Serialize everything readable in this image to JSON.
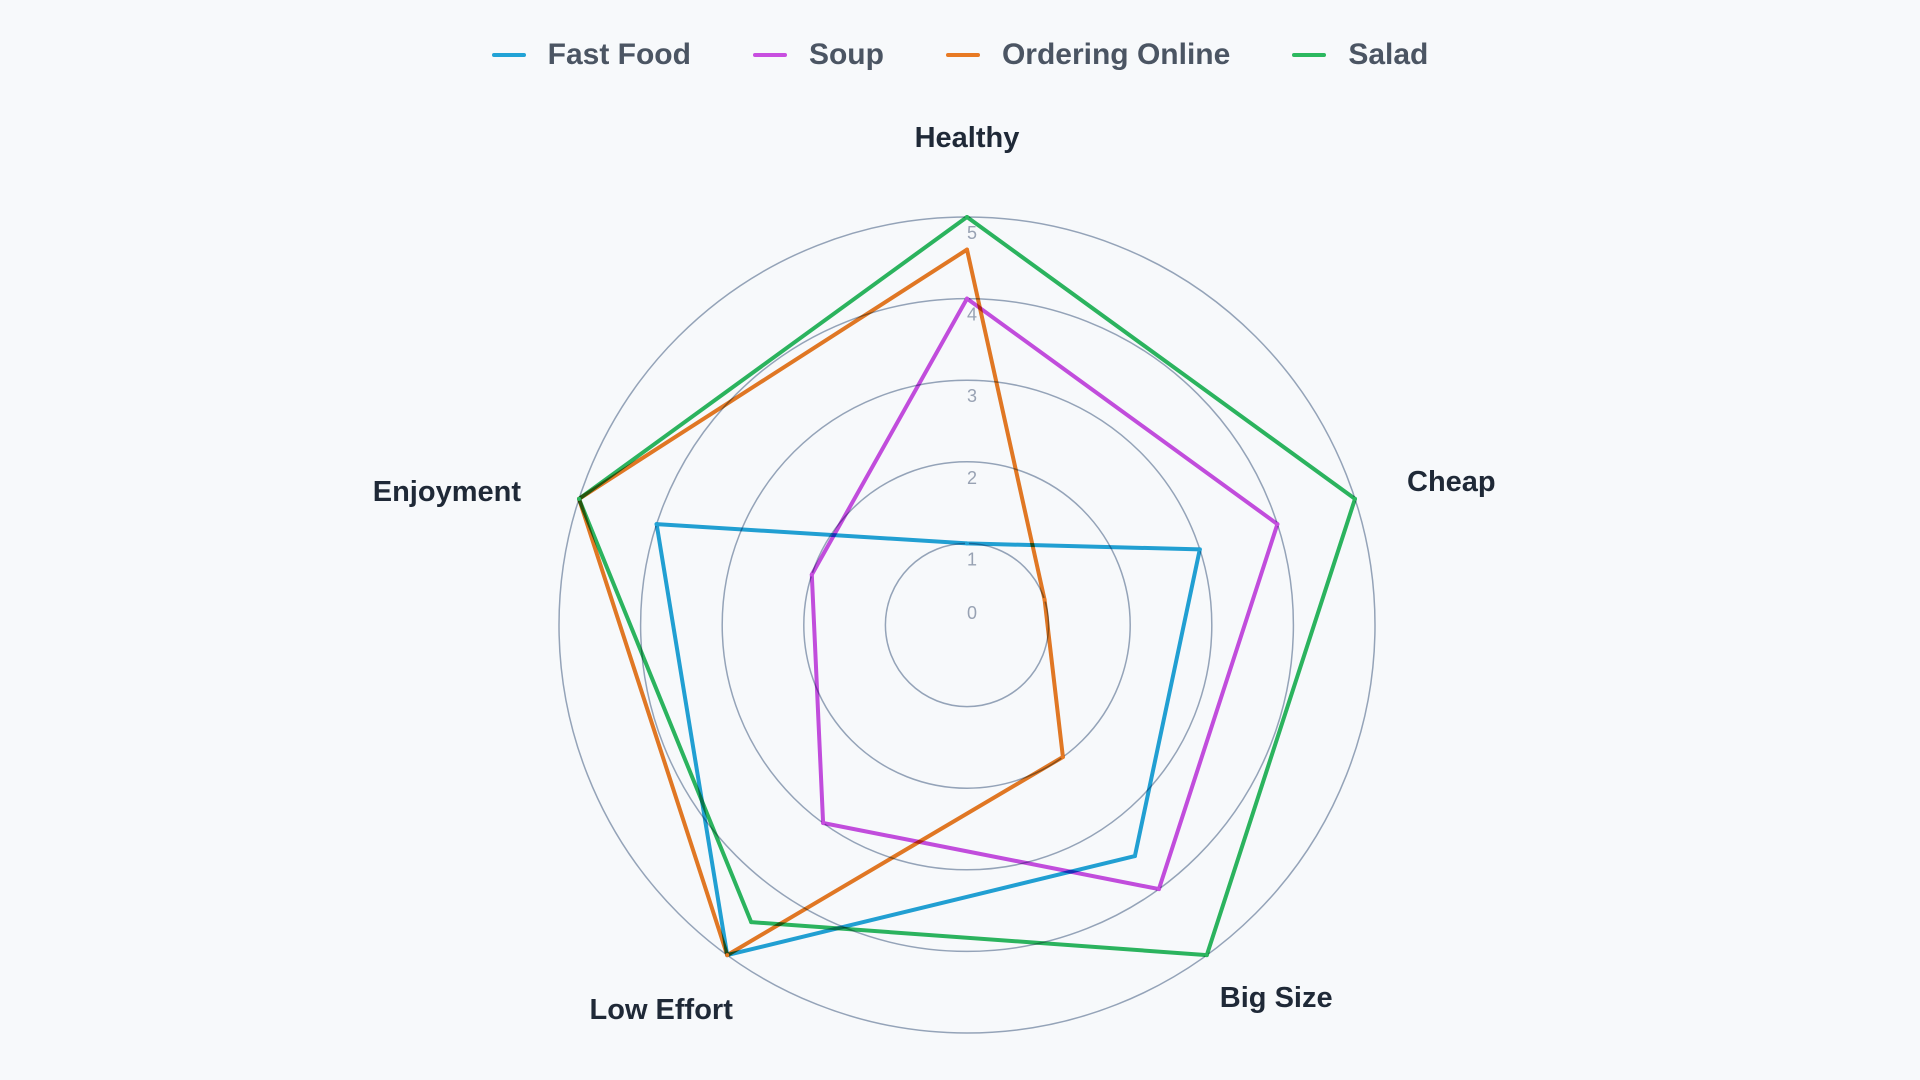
{
  "chart_data": {
    "type": "radar",
    "axes": [
      "Healthy",
      "Cheap",
      "Big Size",
      "Low Effort",
      "Enjoyment"
    ],
    "radial_ticks": [
      "0",
      "1",
      "2",
      "3",
      "4",
      "5"
    ],
    "rlim": [
      0,
      5
    ],
    "legend_position": "top",
    "series": [
      {
        "name": "Fast Food",
        "color": "#22a3d6",
        "values": [
          1,
          3,
          3.5,
          5,
          4
        ]
      },
      {
        "name": "Soup",
        "color": "#c84fe0",
        "values": [
          4,
          4,
          4,
          3,
          2
        ]
      },
      {
        "name": "Ordering Online",
        "color": "#e87a24",
        "values": [
          4.6,
          1,
          2,
          5,
          5
        ]
      },
      {
        "name": "Salad",
        "color": "#2cb85f",
        "values": [
          5,
          5,
          5,
          4.5,
          5
        ]
      }
    ],
    "grid_color": "#94a3b8"
  }
}
